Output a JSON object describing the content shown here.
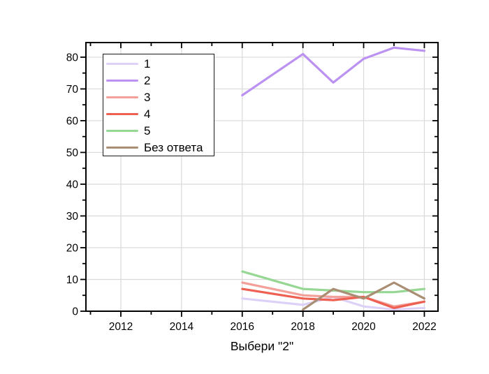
{
  "colors": {
    "axis": "#000000",
    "grid": "#d9d9d9",
    "background": "#ffffff",
    "legend_border": "#1a1a1a"
  },
  "chart_data": {
    "type": "line",
    "title": "",
    "xlabel": "Выбери \"2\"",
    "ylabel": "",
    "xlim": [
      2010.85,
      2022.45
    ],
    "ylim": [
      0,
      84.6
    ],
    "x_major_ticks": [
      2012,
      2014,
      2016,
      2018,
      2020,
      2022
    ],
    "x_tick_labels": [
      "2012",
      "2014",
      "2016",
      "2018",
      "2020",
      "2022"
    ],
    "x_minor_ticks": [
      2011,
      2013,
      2015,
      2017,
      2019,
      2021
    ],
    "y_major_ticks": [
      0,
      10,
      20,
      30,
      40,
      50,
      60,
      70,
      80
    ],
    "y_tick_labels": [
      "0",
      "10",
      "20",
      "30",
      "40",
      "50",
      "60",
      "70",
      "80"
    ],
    "y_minor_ticks": [
      5,
      15,
      25,
      35,
      45,
      55,
      65,
      75
    ],
    "grid": true,
    "legend_position": "upper-left-inside",
    "legend_entries": [
      "1",
      "2",
      "3",
      "4",
      "5",
      "Без ответа"
    ],
    "series": [
      {
        "name": "1",
        "color": "#ddd1f8",
        "x": [
          2016,
          2018,
          2019,
          2020,
          2021,
          2022
        ],
        "y": [
          4,
          2,
          4.5,
          1.5,
          0.5,
          1
        ]
      },
      {
        "name": "2",
        "color": "#bb92f2",
        "x": [
          2016,
          2018,
          2019,
          2020,
          2021,
          2022
        ],
        "y": [
          68,
          81,
          72,
          79.5,
          83,
          82
        ]
      },
      {
        "name": "3",
        "color": "#f3a09a",
        "x": [
          2016,
          2018,
          2019,
          2020,
          2021,
          2022
        ],
        "y": [
          9,
          5,
          4.5,
          4.5,
          1.5,
          3
        ]
      },
      {
        "name": "4",
        "color": "#ee6052",
        "x": [
          2016,
          2018,
          2019,
          2020,
          2021,
          2022
        ],
        "y": [
          7,
          4,
          3.5,
          4.5,
          1,
          3
        ]
      },
      {
        "name": "5",
        "color": "#96d794",
        "x": [
          2016,
          2018,
          2019,
          2020,
          2021,
          2022
        ],
        "y": [
          12.5,
          7,
          6.5,
          6,
          6,
          7
        ]
      },
      {
        "name": "Без ответа",
        "color": "#a98e74",
        "x": [
          2018,
          2019,
          2020,
          2021,
          2022
        ],
        "y": [
          0.5,
          7,
          4,
          9,
          4
        ]
      }
    ]
  }
}
